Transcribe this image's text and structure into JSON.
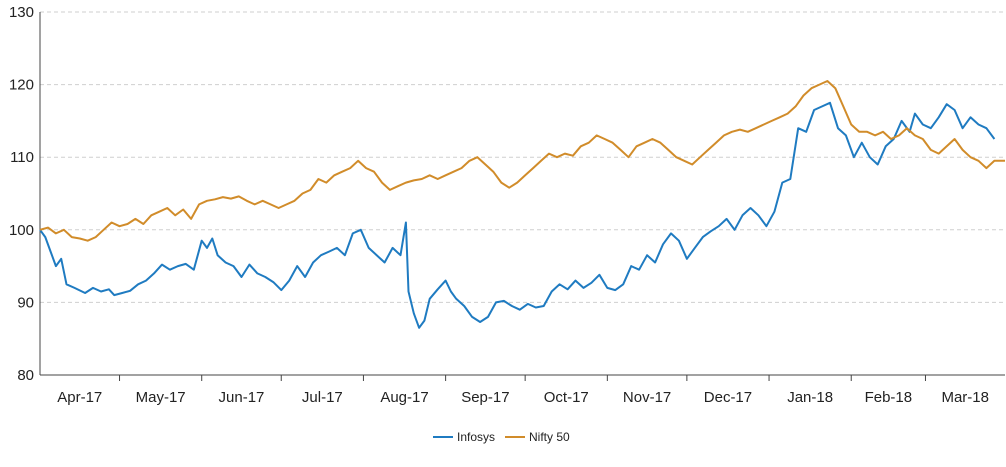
{
  "chart_data": {
    "type": "line",
    "title": "",
    "xlabel": "",
    "ylabel": "",
    "ylim": [
      80,
      130
    ],
    "yticks": [
      80,
      90,
      100,
      110,
      120,
      130
    ],
    "grid": "horizontal dashed",
    "legend_position": "bottom-center",
    "months": [
      "Apr-17",
      "May-17",
      "Jun-17",
      "Jul-17",
      "Aug-17",
      "Sep-17",
      "Oct-17",
      "Nov-17",
      "Dec-17",
      "Jan-18",
      "Feb-18",
      "Mar-18"
    ],
    "x_start": "2017-04-01",
    "x_end": "2018-03-31",
    "series": [
      {
        "name": "Infosys",
        "color": "#1f7bc1",
        "points": [
          [
            "2017-04-01",
            100.0
          ],
          [
            "2017-04-03",
            99.0
          ],
          [
            "2017-04-05",
            97.0
          ],
          [
            "2017-04-07",
            95.0
          ],
          [
            "2017-04-09",
            96.0
          ],
          [
            "2017-04-11",
            92.5
          ],
          [
            "2017-04-14",
            92.0
          ],
          [
            "2017-04-18",
            91.3
          ],
          [
            "2017-04-21",
            92.0
          ],
          [
            "2017-04-24",
            91.5
          ],
          [
            "2017-04-27",
            91.8
          ],
          [
            "2017-04-29",
            91.0
          ],
          [
            "2017-05-02",
            91.3
          ],
          [
            "2017-05-05",
            91.6
          ],
          [
            "2017-05-08",
            92.5
          ],
          [
            "2017-05-11",
            93.0
          ],
          [
            "2017-05-14",
            94.0
          ],
          [
            "2017-05-17",
            95.2
          ],
          [
            "2017-05-20",
            94.5
          ],
          [
            "2017-05-23",
            95.0
          ],
          [
            "2017-05-26",
            95.3
          ],
          [
            "2017-05-29",
            94.5
          ],
          [
            "2017-06-01",
            98.5
          ],
          [
            "2017-06-03",
            97.5
          ],
          [
            "2017-06-05",
            98.8
          ],
          [
            "2017-06-07",
            96.5
          ],
          [
            "2017-06-10",
            95.5
          ],
          [
            "2017-06-13",
            95.0
          ],
          [
            "2017-06-16",
            93.5
          ],
          [
            "2017-06-19",
            95.2
          ],
          [
            "2017-06-22",
            94.0
          ],
          [
            "2017-06-25",
            93.5
          ],
          [
            "2017-06-28",
            92.8
          ],
          [
            "2017-07-01",
            91.7
          ],
          [
            "2017-07-04",
            93.0
          ],
          [
            "2017-07-07",
            95.0
          ],
          [
            "2017-07-10",
            93.5
          ],
          [
            "2017-07-13",
            95.5
          ],
          [
            "2017-07-16",
            96.5
          ],
          [
            "2017-07-19",
            97.0
          ],
          [
            "2017-07-22",
            97.5
          ],
          [
            "2017-07-25",
            96.5
          ],
          [
            "2017-07-28",
            99.5
          ],
          [
            "2017-07-31",
            100.0
          ],
          [
            "2017-08-03",
            97.5
          ],
          [
            "2017-08-06",
            96.5
          ],
          [
            "2017-08-09",
            95.5
          ],
          [
            "2017-08-12",
            97.5
          ],
          [
            "2017-08-15",
            96.5
          ],
          [
            "2017-08-17",
            101.0
          ],
          [
            "2017-08-18",
            91.5
          ],
          [
            "2017-08-20",
            88.5
          ],
          [
            "2017-08-22",
            86.5
          ],
          [
            "2017-08-24",
            87.5
          ],
          [
            "2017-08-26",
            90.5
          ],
          [
            "2017-08-29",
            91.8
          ],
          [
            "2017-09-01",
            93.0
          ],
          [
            "2017-09-03",
            91.5
          ],
          [
            "2017-09-05",
            90.5
          ],
          [
            "2017-09-08",
            89.5
          ],
          [
            "2017-09-11",
            88.0
          ],
          [
            "2017-09-14",
            87.3
          ],
          [
            "2017-09-17",
            88.0
          ],
          [
            "2017-09-20",
            90.0
          ],
          [
            "2017-09-23",
            90.2
          ],
          [
            "2017-09-26",
            89.5
          ],
          [
            "2017-09-29",
            89.0
          ],
          [
            "2017-10-02",
            89.8
          ],
          [
            "2017-10-05",
            89.3
          ],
          [
            "2017-10-08",
            89.5
          ],
          [
            "2017-10-11",
            91.5
          ],
          [
            "2017-10-14",
            92.5
          ],
          [
            "2017-10-17",
            91.8
          ],
          [
            "2017-10-20",
            93.0
          ],
          [
            "2017-10-23",
            92.0
          ],
          [
            "2017-10-26",
            92.7
          ],
          [
            "2017-10-29",
            93.8
          ],
          [
            "2017-11-01",
            92.0
          ],
          [
            "2017-11-04",
            91.7
          ],
          [
            "2017-11-07",
            92.5
          ],
          [
            "2017-11-10",
            95.0
          ],
          [
            "2017-11-13",
            94.5
          ],
          [
            "2017-11-16",
            96.5
          ],
          [
            "2017-11-19",
            95.5
          ],
          [
            "2017-11-22",
            98.0
          ],
          [
            "2017-11-25",
            99.5
          ],
          [
            "2017-11-28",
            98.5
          ],
          [
            "2017-12-01",
            96.0
          ],
          [
            "2017-12-04",
            97.5
          ],
          [
            "2017-12-07",
            99.0
          ],
          [
            "2017-12-10",
            99.8
          ],
          [
            "2017-12-13",
            100.5
          ],
          [
            "2017-12-16",
            101.5
          ],
          [
            "2017-12-19",
            100.0
          ],
          [
            "2017-12-22",
            102.0
          ],
          [
            "2017-12-25",
            103.0
          ],
          [
            "2017-12-28",
            102.0
          ],
          [
            "2017-12-31",
            100.5
          ],
          [
            "2018-01-03",
            102.5
          ],
          [
            "2018-01-06",
            106.5
          ],
          [
            "2018-01-09",
            107.0
          ],
          [
            "2018-01-12",
            114.0
          ],
          [
            "2018-01-15",
            113.5
          ],
          [
            "2018-01-18",
            116.5
          ],
          [
            "2018-01-21",
            117.0
          ],
          [
            "2018-01-24",
            117.5
          ],
          [
            "2018-01-27",
            114.0
          ],
          [
            "2018-01-30",
            113.0
          ],
          [
            "2018-02-02",
            110.0
          ],
          [
            "2018-02-05",
            112.0
          ],
          [
            "2018-02-08",
            110.0
          ],
          [
            "2018-02-11",
            109.0
          ],
          [
            "2018-02-14",
            111.5
          ],
          [
            "2018-02-17",
            112.5
          ],
          [
            "2018-02-20",
            115.0
          ],
          [
            "2018-02-23",
            113.5
          ],
          [
            "2018-02-25",
            116.0
          ],
          [
            "2018-02-28",
            114.5
          ],
          [
            "2018-03-03",
            114.0
          ],
          [
            "2018-03-06",
            115.5
          ],
          [
            "2018-03-09",
            117.3
          ],
          [
            "2018-03-12",
            116.5
          ],
          [
            "2018-03-15",
            114.0
          ],
          [
            "2018-03-18",
            115.5
          ],
          [
            "2018-03-21",
            114.5
          ],
          [
            "2018-03-24",
            114.0
          ],
          [
            "2018-03-27",
            112.5
          ]
        ]
      },
      {
        "name": "Nifty 50",
        "color": "#d18c2a",
        "points": [
          [
            "2017-04-01",
            100.0
          ],
          [
            "2017-04-04",
            100.3
          ],
          [
            "2017-04-07",
            99.5
          ],
          [
            "2017-04-10",
            100.0
          ],
          [
            "2017-04-13",
            99.0
          ],
          [
            "2017-04-16",
            98.8
          ],
          [
            "2017-04-19",
            98.5
          ],
          [
            "2017-04-22",
            99.0
          ],
          [
            "2017-04-25",
            100.0
          ],
          [
            "2017-04-28",
            101.0
          ],
          [
            "2017-05-01",
            100.5
          ],
          [
            "2017-05-04",
            100.8
          ],
          [
            "2017-05-07",
            101.5
          ],
          [
            "2017-05-10",
            100.8
          ],
          [
            "2017-05-13",
            102.0
          ],
          [
            "2017-05-16",
            102.5
          ],
          [
            "2017-05-19",
            103.0
          ],
          [
            "2017-05-22",
            102.0
          ],
          [
            "2017-05-25",
            102.8
          ],
          [
            "2017-05-28",
            101.5
          ],
          [
            "2017-05-31",
            103.5
          ],
          [
            "2017-06-03",
            104.0
          ],
          [
            "2017-06-06",
            104.2
          ],
          [
            "2017-06-09",
            104.5
          ],
          [
            "2017-06-12",
            104.3
          ],
          [
            "2017-06-15",
            104.6
          ],
          [
            "2017-06-18",
            104.0
          ],
          [
            "2017-06-21",
            103.5
          ],
          [
            "2017-06-24",
            104.0
          ],
          [
            "2017-06-27",
            103.5
          ],
          [
            "2017-06-30",
            103.0
          ],
          [
            "2017-07-03",
            103.5
          ],
          [
            "2017-07-06",
            104.0
          ],
          [
            "2017-07-09",
            105.0
          ],
          [
            "2017-07-12",
            105.5
          ],
          [
            "2017-07-15",
            107.0
          ],
          [
            "2017-07-18",
            106.5
          ],
          [
            "2017-07-21",
            107.5
          ],
          [
            "2017-07-24",
            108.0
          ],
          [
            "2017-07-27",
            108.5
          ],
          [
            "2017-07-30",
            109.5
          ],
          [
            "2017-08-02",
            108.5
          ],
          [
            "2017-08-05",
            108.0
          ],
          [
            "2017-08-08",
            106.5
          ],
          [
            "2017-08-11",
            105.5
          ],
          [
            "2017-08-14",
            106.0
          ],
          [
            "2017-08-17",
            106.5
          ],
          [
            "2017-08-20",
            106.8
          ],
          [
            "2017-08-23",
            107.0
          ],
          [
            "2017-08-26",
            107.5
          ],
          [
            "2017-08-29",
            107.0
          ],
          [
            "2017-09-01",
            107.5
          ],
          [
            "2017-09-04",
            108.0
          ],
          [
            "2017-09-07",
            108.5
          ],
          [
            "2017-09-10",
            109.5
          ],
          [
            "2017-09-13",
            110.0
          ],
          [
            "2017-09-16",
            109.0
          ],
          [
            "2017-09-19",
            108.0
          ],
          [
            "2017-09-22",
            106.5
          ],
          [
            "2017-09-25",
            105.8
          ],
          [
            "2017-09-28",
            106.5
          ],
          [
            "2017-10-01",
            107.5
          ],
          [
            "2017-10-04",
            108.5
          ],
          [
            "2017-10-07",
            109.5
          ],
          [
            "2017-10-10",
            110.5
          ],
          [
            "2017-10-13",
            110.0
          ],
          [
            "2017-10-16",
            110.5
          ],
          [
            "2017-10-19",
            110.2
          ],
          [
            "2017-10-22",
            111.5
          ],
          [
            "2017-10-25",
            112.0
          ],
          [
            "2017-10-28",
            113.0
          ],
          [
            "2017-10-31",
            112.5
          ],
          [
            "2017-11-03",
            112.0
          ],
          [
            "2017-11-06",
            111.0
          ],
          [
            "2017-11-09",
            110.0
          ],
          [
            "2017-11-12",
            111.5
          ],
          [
            "2017-11-15",
            112.0
          ],
          [
            "2017-11-18",
            112.5
          ],
          [
            "2017-11-21",
            112.0
          ],
          [
            "2017-11-24",
            111.0
          ],
          [
            "2017-11-27",
            110.0
          ],
          [
            "2017-11-30",
            109.5
          ],
          [
            "2017-12-03",
            109.0
          ],
          [
            "2017-12-06",
            110.0
          ],
          [
            "2017-12-09",
            111.0
          ],
          [
            "2017-12-12",
            112.0
          ],
          [
            "2017-12-15",
            113.0
          ],
          [
            "2017-12-18",
            113.5
          ],
          [
            "2017-12-21",
            113.8
          ],
          [
            "2017-12-24",
            113.5
          ],
          [
            "2017-12-27",
            114.0
          ],
          [
            "2017-12-30",
            114.5
          ],
          [
            "2018-01-02",
            115.0
          ],
          [
            "2018-01-05",
            115.5
          ],
          [
            "2018-01-08",
            116.0
          ],
          [
            "2018-01-11",
            117.0
          ],
          [
            "2018-01-14",
            118.5
          ],
          [
            "2018-01-17",
            119.5
          ],
          [
            "2018-01-20",
            120.0
          ],
          [
            "2018-01-23",
            120.5
          ],
          [
            "2018-01-26",
            119.5
          ],
          [
            "2018-01-29",
            117.0
          ],
          [
            "2018-02-01",
            114.5
          ],
          [
            "2018-02-04",
            113.5
          ],
          [
            "2018-02-07",
            113.5
          ],
          [
            "2018-02-10",
            113.0
          ],
          [
            "2018-02-13",
            113.5
          ],
          [
            "2018-02-16",
            112.5
          ],
          [
            "2018-02-19",
            113.0
          ],
          [
            "2018-02-22",
            114.0
          ],
          [
            "2018-02-25",
            113.0
          ],
          [
            "2018-02-28",
            112.5
          ],
          [
            "2018-03-03",
            111.0
          ],
          [
            "2018-03-06",
            110.5
          ],
          [
            "2018-03-09",
            111.5
          ],
          [
            "2018-03-12",
            112.5
          ],
          [
            "2018-03-15",
            111.0
          ],
          [
            "2018-03-18",
            110.0
          ],
          [
            "2018-03-21",
            109.5
          ],
          [
            "2018-03-24",
            108.5
          ],
          [
            "2018-03-27",
            109.5
          ],
          [
            "2018-03-31",
            109.5
          ]
        ]
      }
    ]
  }
}
